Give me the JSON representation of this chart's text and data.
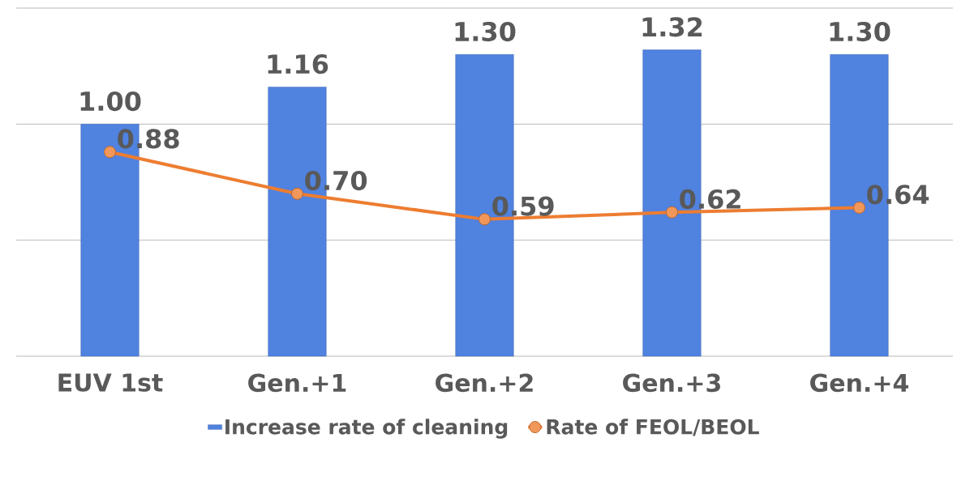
{
  "chart_data": {
    "type": "bar",
    "categories": [
      "EUV 1st",
      "Gen.+1",
      "Gen.+2",
      "Gen.+3",
      "Gen.+4"
    ],
    "series": [
      {
        "name": "Increase rate of cleaning",
        "color": "#5082e0",
        "values": [
          1.0,
          1.16,
          1.3,
          1.32,
          1.3
        ],
        "value_labels": [
          "1.00",
          "1.16",
          "1.30",
          "1.32",
          "1.30"
        ]
      },
      {
        "name": "Rate of FEOL/BEOL",
        "type": "line",
        "color": "#ed7d31",
        "marker": "circle",
        "values": [
          0.88,
          0.7,
          0.59,
          0.62,
          0.64
        ],
        "value_labels": [
          "0.88",
          "0.70",
          "0.59",
          "0.62",
          "0.64"
        ]
      }
    ],
    "ylim": [
      0,
      1.5
    ],
    "yticks": [
      {
        "value": 0,
        "label": null
      },
      {
        "value": 0.5,
        "label": null
      },
      {
        "value": 1,
        "label": null
      },
      {
        "value": 1.5,
        "label": null
      }
    ],
    "grid": "y",
    "legend": "bottom",
    "tick_labels": "x"
  }
}
